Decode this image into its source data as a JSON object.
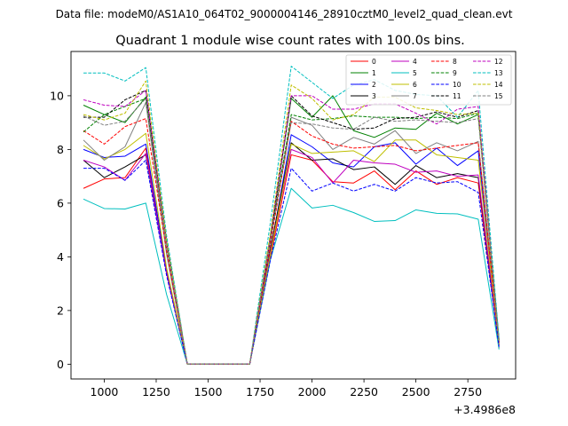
{
  "chart_data": {
    "type": "line",
    "suptitle": "Data file: modeM0/AS1A10_064T02_9000004146_28910cztM0_level2_quad_clean.evt",
    "title": "Quadrant 1 module wise count rates with 100.0s bins.",
    "xlabel": "",
    "ylabel": "",
    "x_offset_label": "+3.4986e8",
    "xlim": [
      840,
      2980
    ],
    "ylim": [
      -0.55,
      11.65
    ],
    "x_ticks": [
      1000,
      1250,
      1500,
      1750,
      2000,
      2250,
      2500,
      2750
    ],
    "x_tick_labels": [
      "1000",
      "1250",
      "1500",
      "1750",
      "2000",
      "2250",
      "2500",
      "2750"
    ],
    "y_ticks": [
      0,
      2,
      4,
      6,
      8,
      10
    ],
    "y_tick_labels": [
      "0",
      "2",
      "4",
      "6",
      "8",
      "10"
    ],
    "grid": false,
    "legend_position": "upper right",
    "x": [
      900,
      1000,
      1100,
      1200,
      1300,
      1400,
      1500,
      1600,
      1700,
      1800,
      1900,
      2000,
      2100,
      2200,
      2300,
      2400,
      2500,
      2600,
      2700,
      2800,
      2900
    ],
    "series": [
      {
        "name": "0",
        "color": "#ff0000",
        "dash": "solid",
        "values": [
          6.55,
          6.9,
          6.95,
          8.05,
          3.4,
          0,
          0,
          0,
          0,
          4.0,
          7.8,
          7.6,
          6.8,
          6.75,
          7.2,
          6.5,
          7.2,
          6.7,
          6.95,
          6.75,
          0.6
        ]
      },
      {
        "name": "1",
        "color": "#008000",
        "dash": "solid",
        "values": [
          9.65,
          9.3,
          9.0,
          9.95,
          4.5,
          0,
          0,
          0,
          0,
          4.8,
          9.9,
          9.2,
          10.0,
          8.7,
          8.45,
          8.8,
          8.75,
          9.35,
          8.95,
          9.3,
          0.9
        ]
      },
      {
        "name": "2",
        "color": "#0000ff",
        "dash": "solid",
        "values": [
          8.0,
          7.7,
          7.75,
          8.2,
          3.5,
          0,
          0,
          0,
          0,
          4.2,
          8.55,
          8.1,
          7.5,
          7.35,
          8.1,
          8.25,
          7.45,
          8.05,
          7.4,
          7.95,
          0.75
        ]
      },
      {
        "name": "3",
        "color": "#000000",
        "dash": "solid",
        "values": [
          7.6,
          6.95,
          7.35,
          7.8,
          3.4,
          0,
          0,
          0,
          0,
          4.3,
          8.25,
          7.6,
          7.65,
          7.25,
          7.35,
          6.7,
          7.4,
          6.95,
          7.1,
          6.95,
          0.7
        ]
      },
      {
        "name": "4",
        "color": "#bf00bf",
        "dash": "solid",
        "values": [
          7.6,
          7.35,
          6.85,
          7.85,
          3.4,
          0,
          0,
          0,
          0,
          4.2,
          8.0,
          7.7,
          6.75,
          7.6,
          7.5,
          7.45,
          7.15,
          7.2,
          7.0,
          7.05,
          0.7
        ]
      },
      {
        "name": "5",
        "color": "#00bfbf",
        "dash": "solid",
        "values": [
          6.15,
          5.8,
          5.78,
          6.0,
          2.6,
          0,
          0,
          0,
          0,
          3.9,
          6.55,
          5.82,
          5.92,
          5.65,
          5.32,
          5.35,
          5.75,
          5.62,
          5.6,
          5.4,
          0.55
        ]
      },
      {
        "name": "6",
        "color": "#bfbf00",
        "dash": "solid",
        "values": [
          8.15,
          7.65,
          8.0,
          8.6,
          3.6,
          0,
          0,
          0,
          0,
          4.1,
          8.2,
          7.85,
          7.9,
          7.95,
          7.55,
          8.35,
          8.35,
          7.8,
          7.7,
          7.6,
          0.75
        ]
      },
      {
        "name": "7",
        "color": "#808080",
        "dash": "solid",
        "values": [
          8.35,
          7.6,
          8.1,
          9.75,
          4.1,
          0,
          0,
          0,
          0,
          4.6,
          9.2,
          8.9,
          8.0,
          8.45,
          8.2,
          8.7,
          7.85,
          8.25,
          7.95,
          8.3,
          0.8
        ]
      },
      {
        "name": "8",
        "color": "#ff0000",
        "dash": "dashed",
        "values": [
          8.7,
          8.2,
          8.85,
          9.15,
          4.2,
          0,
          0,
          0,
          0,
          4.5,
          9.05,
          8.5,
          8.2,
          8.05,
          8.1,
          8.15,
          7.95,
          8.05,
          8.15,
          8.25,
          0.8
        ]
      },
      {
        "name": "9",
        "color": "#008000",
        "dash": "dashed",
        "values": [
          8.65,
          9.3,
          9.6,
          9.9,
          4.4,
          0,
          0,
          0,
          0,
          4.7,
          9.3,
          9.1,
          9.15,
          9.25,
          9.2,
          9.2,
          9.15,
          9.2,
          9.15,
          9.35,
          0.85
        ]
      },
      {
        "name": "10",
        "color": "#0000ff",
        "dash": "dashed",
        "values": [
          7.3,
          7.3,
          6.85,
          7.6,
          3.3,
          0,
          0,
          0,
          0,
          3.9,
          7.3,
          6.45,
          6.75,
          6.45,
          6.7,
          6.45,
          6.95,
          6.75,
          6.8,
          6.4,
          0.65
        ]
      },
      {
        "name": "11",
        "color": "#000000",
        "dash": "dashed",
        "values": [
          9.2,
          9.2,
          9.85,
          10.2,
          4.6,
          0,
          0,
          0,
          0,
          4.7,
          10.0,
          9.25,
          9.0,
          8.75,
          8.8,
          9.15,
          9.2,
          9.4,
          9.2,
          9.45,
          0.9
        ]
      },
      {
        "name": "12",
        "color": "#bf00bf",
        "dash": "dashed",
        "values": [
          9.85,
          9.65,
          9.6,
          10.2,
          4.5,
          0,
          0,
          0,
          0,
          4.8,
          10.0,
          10.0,
          9.5,
          9.5,
          9.7,
          9.7,
          9.35,
          8.95,
          9.5,
          9.6,
          0.9
        ]
      },
      {
        "name": "13",
        "color": "#00bfbf",
        "dash": "dashed",
        "values": [
          10.85,
          10.85,
          10.55,
          11.05,
          4.8,
          0,
          0,
          0,
          0,
          5.3,
          11.1,
          10.5,
          9.9,
          10.4,
          10.6,
          10.2,
          10.05,
          10.0,
          9.2,
          10.2,
          0.95
        ]
      },
      {
        "name": "14",
        "color": "#bfbf00",
        "dash": "dashed",
        "values": [
          9.3,
          9.1,
          9.35,
          10.55,
          4.6,
          0,
          0,
          0,
          0,
          4.9,
          10.4,
          9.9,
          9.1,
          9.3,
          9.95,
          9.95,
          9.55,
          9.45,
          9.3,
          9.35,
          0.85
        ]
      },
      {
        "name": "15",
        "color": "#808080",
        "dash": "dashed",
        "values": [
          9.25,
          8.9,
          9.05,
          9.9,
          4.4,
          0,
          0,
          0,
          0,
          4.7,
          9.0,
          8.95,
          8.8,
          8.75,
          9.2,
          9.05,
          9.1,
          9.05,
          9.0,
          9.15,
          0.85
        ]
      }
    ]
  }
}
